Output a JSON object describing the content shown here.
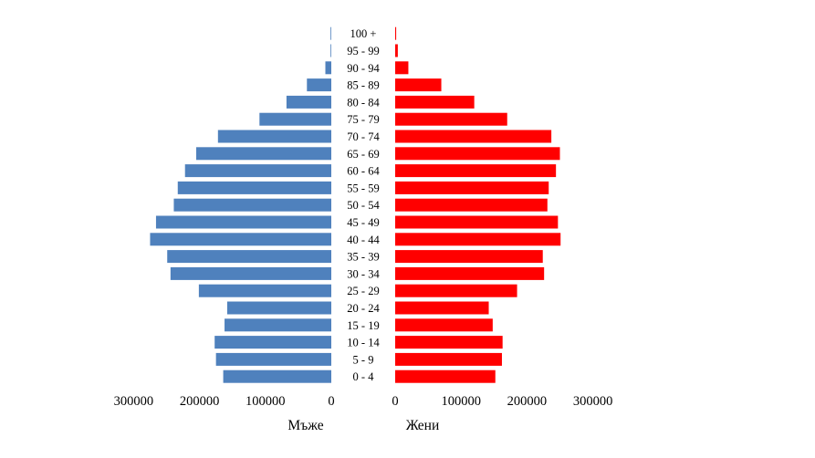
{
  "chart_data": {
    "type": "bar",
    "orientation": "horizontal",
    "layout": "population-pyramid",
    "categories": [
      "0 - 4",
      "5 - 9",
      "10 - 14",
      "15 - 19",
      "20 - 24",
      "25 - 29",
      "30 - 34",
      "35 - 39",
      "40 - 44",
      "45 - 49",
      "50 - 54",
      "55 - 59",
      "60 - 64",
      "65 - 69",
      "70 - 74",
      "75 - 79",
      "80 - 84",
      "85 - 89",
      "90 - 94",
      "95 - 99",
      "100 +"
    ],
    "series": [
      {
        "name": "Мъже",
        "side": "left",
        "color": "#4f81bd",
        "values": [
          164000,
          175000,
          177000,
          162000,
          158000,
          201000,
          244000,
          249000,
          275000,
          266000,
          239000,
          233000,
          222000,
          205000,
          172000,
          109000,
          68000,
          37000,
          9000,
          1000,
          300
        ]
      },
      {
        "name": "Жени",
        "side": "right",
        "color": "#ff0000",
        "values": [
          152000,
          162000,
          163000,
          148000,
          142000,
          185000,
          226000,
          224000,
          251000,
          247000,
          231000,
          233000,
          244000,
          250000,
          237000,
          170000,
          120000,
          70000,
          20000,
          4000,
          1500
        ]
      }
    ],
    "xlabel_left": "Мъже",
    "xlabel_right": "Жени",
    "left_ticks": [
      "300000",
      "200000",
      "100000",
      "0"
    ],
    "right_ticks": [
      "0",
      "100000",
      "200000",
      "300000"
    ],
    "xlim": [
      0,
      300000
    ],
    "grid": false,
    "legend": "none"
  }
}
